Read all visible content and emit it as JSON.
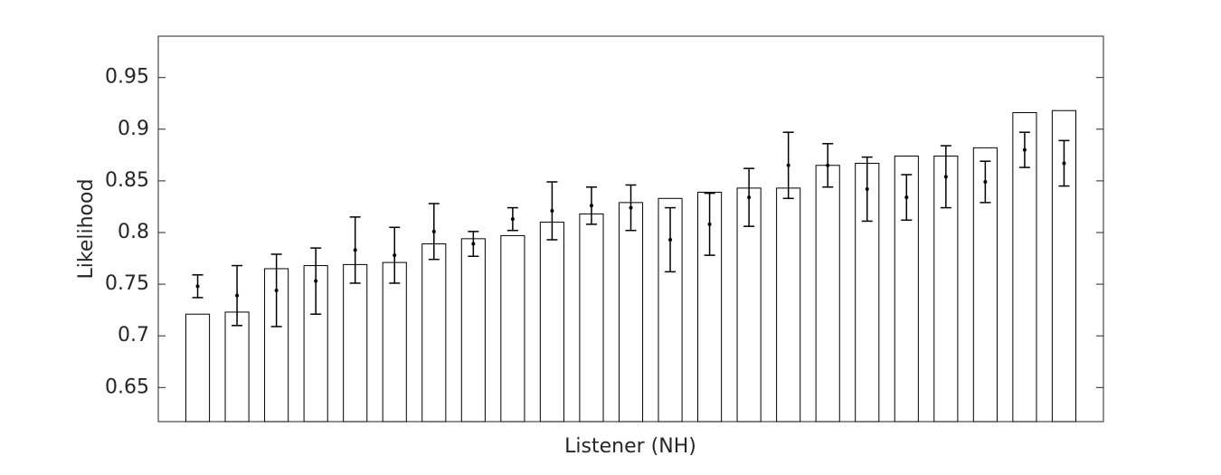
{
  "chart_data": {
    "type": "bar",
    "xlabel": "Listener (NH)",
    "ylabel": "Likelihood",
    "categories": [
      null,
      null,
      null,
      null,
      null,
      null,
      null,
      null,
      null,
      null,
      null,
      null,
      null,
      null,
      null,
      null,
      null,
      null,
      null,
      null,
      null,
      null,
      null
    ],
    "series": [
      {
        "type": "bar",
        "color": "#ffffff",
        "values": [
          0.721,
          0.723,
          0.765,
          0.768,
          0.769,
          0.771,
          0.789,
          0.794,
          0.797,
          0.81,
          0.818,
          0.829,
          0.833,
          0.839,
          0.843,
          0.843,
          0.865,
          0.867,
          0.874,
          0.874,
          0.882,
          0.916,
          0.918
        ]
      },
      {
        "type": "errorbar",
        "color": "#000000",
        "values": [
          0.748,
          0.739,
          0.744,
          0.753,
          0.783,
          0.778,
          0.801,
          0.789,
          0.813,
          0.821,
          0.826,
          0.824,
          0.793,
          0.808,
          0.834,
          0.865,
          0.865,
          0.842,
          0.834,
          0.854,
          0.849,
          0.88,
          0.867
        ],
        "errors": [
          0.011,
          0.029,
          0.035,
          0.032,
          0.032,
          0.027,
          0.027,
          0.012,
          0.011,
          0.028,
          0.018,
          0.022,
          0.031,
          0.03,
          0.028,
          0.032,
          0.021,
          0.031,
          0.022,
          0.03,
          0.02,
          0.017,
          0.022
        ]
      }
    ],
    "ylim": [
      0.617,
      0.99
    ],
    "yticks": [
      0.65,
      0.7,
      0.75,
      0.8,
      0.85,
      0.9,
      0.95
    ],
    "grid": false
  }
}
